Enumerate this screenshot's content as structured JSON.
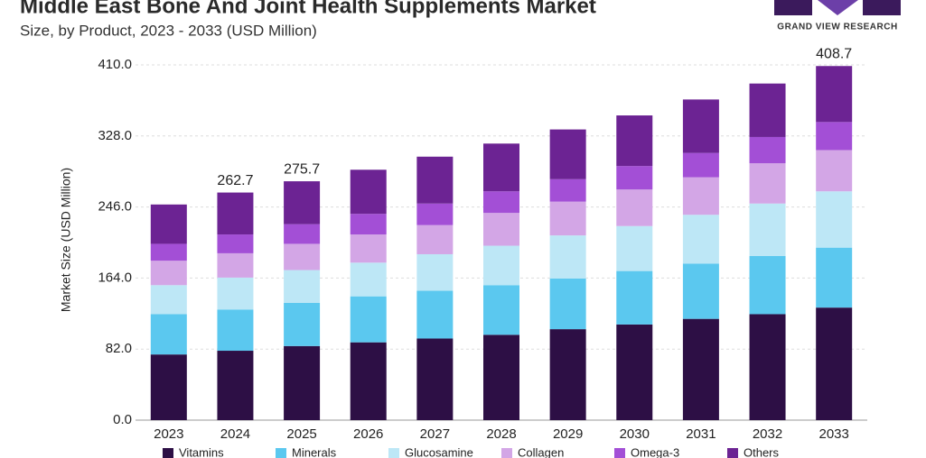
{
  "chart_data": {
    "type": "stacked_bar",
    "title": "Middle East Bone And Joint Health Supplements Market",
    "subtitle": "Size, by Product, 2023 - 2033 (USD Million)",
    "y_label": "Market Size (USD Million)",
    "categories": [
      "2023",
      "2024",
      "2025",
      "2026",
      "2027",
      "2028",
      "2029",
      "2030",
      "2031",
      "2032",
      "2033"
    ],
    "series": [
      {
        "name": "Vitamins",
        "color": "#2d0f45",
        "values": [
          75.8,
          80.1,
          85.5,
          89.8,
          94.2,
          98.5,
          105.0,
          110.4,
          116.9,
          122.3,
          129.9
        ]
      },
      {
        "name": "Minerals",
        "color": "#5bc8ef",
        "values": [
          46.5,
          47.6,
          49.8,
          53.1,
          55.1,
          57.3,
          58.4,
          61.7,
          63.8,
          67.1,
          69.2
        ]
      },
      {
        "name": "Glucosamine",
        "color": "#bde7f6",
        "values": [
          33.5,
          36.8,
          37.9,
          38.9,
          42.2,
          45.5,
          49.8,
          51.9,
          56.3,
          60.6,
          65.0
        ]
      },
      {
        "name": "Collagen",
        "color": "#d3a6e6",
        "values": [
          28.2,
          28.1,
          30.3,
          32.5,
          33.6,
          37.9,
          39.0,
          42.2,
          43.3,
          46.5,
          47.6
        ]
      },
      {
        "name": "Omega-3",
        "color": "#a34fd6",
        "values": [
          19.5,
          21.7,
          22.7,
          23.8,
          24.9,
          24.9,
          25.9,
          27.1,
          28.1,
          30.3,
          32.4
        ]
      },
      {
        "name": "Others",
        "color": "#6c2393",
        "values": [
          45.4,
          48.4,
          49.5,
          50.9,
          54.1,
          55.1,
          57.4,
          58.4,
          61.7,
          61.7,
          64.6
        ]
      }
    ],
    "totals": [
      null,
      262.7,
      275.7,
      null,
      null,
      null,
      null,
      null,
      null,
      null,
      408.7
    ],
    "ylim": [
      0,
      410
    ],
    "yticks": [
      {
        "value": 0,
        "label": "0.0"
      },
      {
        "value": 82,
        "label": "82.0"
      },
      {
        "value": 164,
        "label": "164.0"
      },
      {
        "value": 246,
        "label": "246.0"
      },
      {
        "value": 328,
        "label": "328.0"
      },
      {
        "value": 410,
        "label": "410.0"
      }
    ],
    "grid": true
  },
  "logo": "GRAND VIEW RESEARCH"
}
